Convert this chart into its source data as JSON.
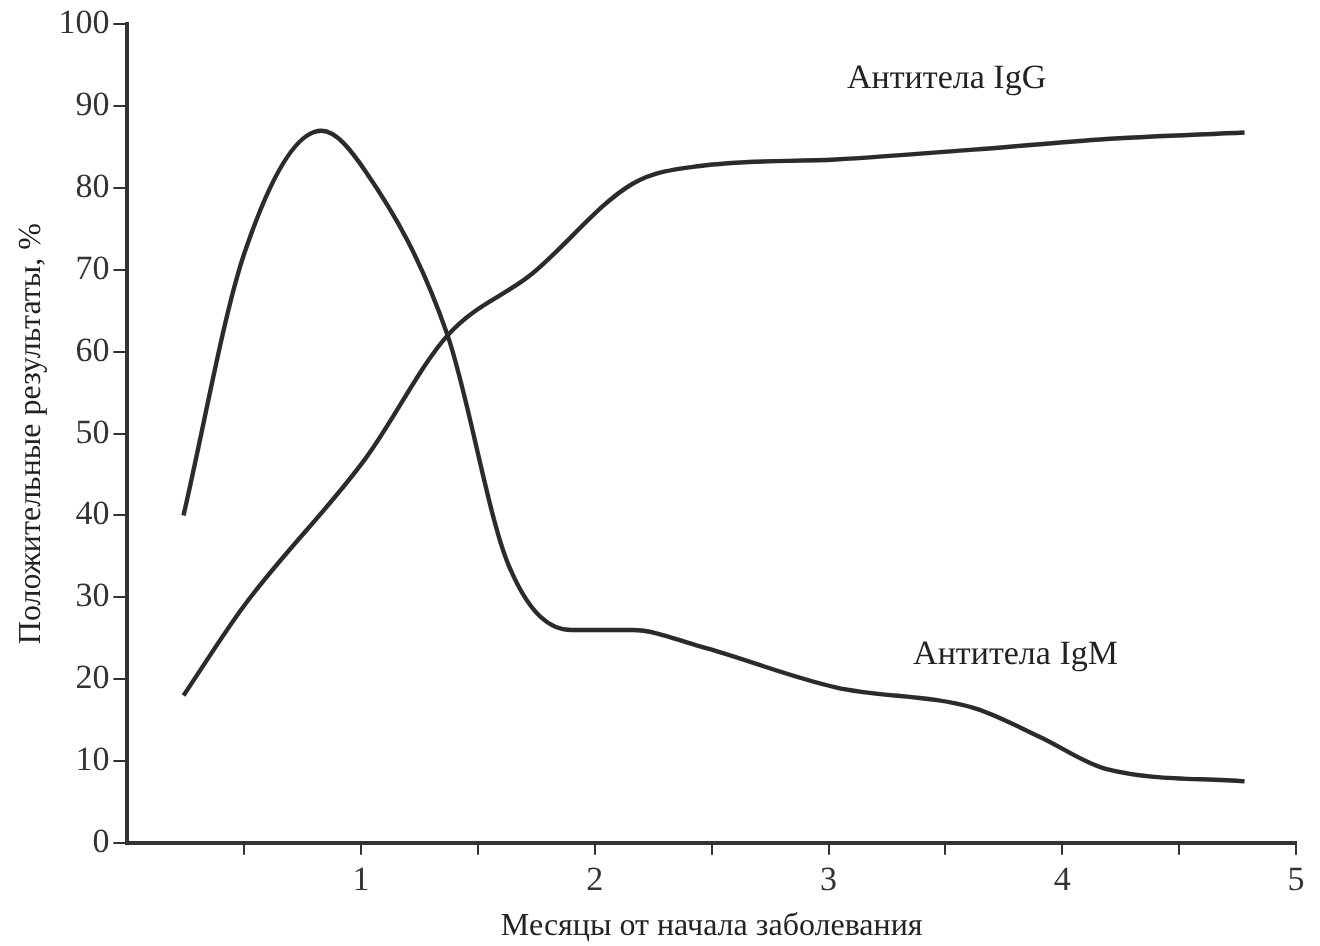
{
  "chart_data": {
    "type": "line",
    "xlabel": "Месяцы от начала заболевания",
    "ylabel": "Положительные результаты, %",
    "xlim": [
      0,
      5
    ],
    "xticks": [
      {
        "value": 0.5,
        "label": null
      },
      1,
      {
        "value": 1.5,
        "label": null
      },
      2,
      {
        "value": 2.5,
        "label": null
      },
      3,
      {
        "value": 3.5,
        "label": null
      },
      4,
      {
        "value": 4.5,
        "label": null
      },
      5
    ],
    "ylim": [
      0,
      100
    ],
    "yticks": [
      0,
      10,
      20,
      30,
      40,
      50,
      60,
      70,
      80,
      90,
      100
    ],
    "grid": false,
    "legend": false,
    "marker": "none",
    "line_style": "solid",
    "series": [
      {
        "name": "Антитела IgG",
        "color": "#2b2b2b",
        "x": [
          0.24,
          0.5,
          1.02,
          1.37,
          1.73,
          2.16,
          2.45,
          3.03,
          3.62,
          4.19,
          4.78
        ],
        "values": [
          18,
          29,
          47,
          62,
          69.5,
          80.5,
          82.7,
          83.5,
          84.7,
          86,
          86.8
        ]
      },
      {
        "name": "Антитела IgM",
        "color": "#2b2b2b",
        "x": [
          0.24,
          0.5,
          0.83,
          1.02,
          1.37,
          1.63,
          1.9,
          2.16,
          2.45,
          3.03,
          3.62,
          3.9,
          4.19,
          4.78
        ],
        "values": [
          40,
          72,
          87,
          82,
          62,
          34,
          26,
          26,
          24,
          19,
          16.5,
          13,
          9,
          7.5
        ]
      }
    ]
  }
}
